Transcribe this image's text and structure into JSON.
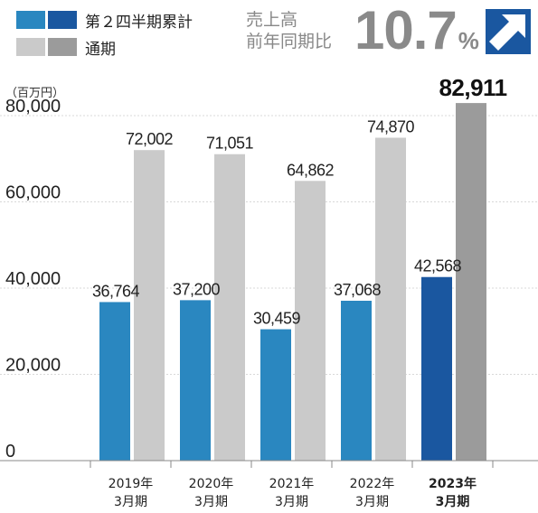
{
  "legend": {
    "q2_label": "第２四半期累計",
    "full_label": "通期",
    "q2_colors": [
      "#2a87c0",
      "#1a57a0"
    ],
    "full_colors": [
      "#cacaca",
      "#9b9b9b"
    ]
  },
  "kpi": {
    "label_line1": "売上高",
    "label_line2": "前年同期比",
    "value": "10.7",
    "unit": "%",
    "icon": "arrow-up-right-icon",
    "color": "#1a57a0"
  },
  "chart_data": {
    "type": "bar",
    "unit_label": "（百万円）",
    "categories": [
      {
        "line1": "2019年",
        "line2": "3月期",
        "highlight": false
      },
      {
        "line1": "2020年",
        "line2": "3月期",
        "highlight": false
      },
      {
        "line1": "2021年",
        "line2": "3月期",
        "highlight": false
      },
      {
        "line1": "2022年",
        "line2": "3月期",
        "highlight": false
      },
      {
        "line1": "2023年",
        "line2": "3月期",
        "highlight": true
      }
    ],
    "series": [
      {
        "key": "q2",
        "values": [
          36764,
          37200,
          30459,
          37068,
          42568
        ]
      },
      {
        "key": "full",
        "values": [
          72002,
          71051,
          64862,
          74870,
          82911
        ]
      }
    ],
    "value_labels": {
      "q2": [
        "36,764",
        "37,200",
        "30,459",
        "37,068",
        "42,568"
      ],
      "full": [
        "72,002",
        "71,051",
        "64,862",
        "74,870",
        "82,911"
      ]
    },
    "yticks": [
      0,
      20000,
      40000,
      60000,
      80000
    ],
    "ytick_labels": [
      "0",
      "20,000",
      "40,000",
      "60,000",
      "80,000"
    ],
    "ylim": [
      0,
      85000
    ],
    "grid": true
  }
}
